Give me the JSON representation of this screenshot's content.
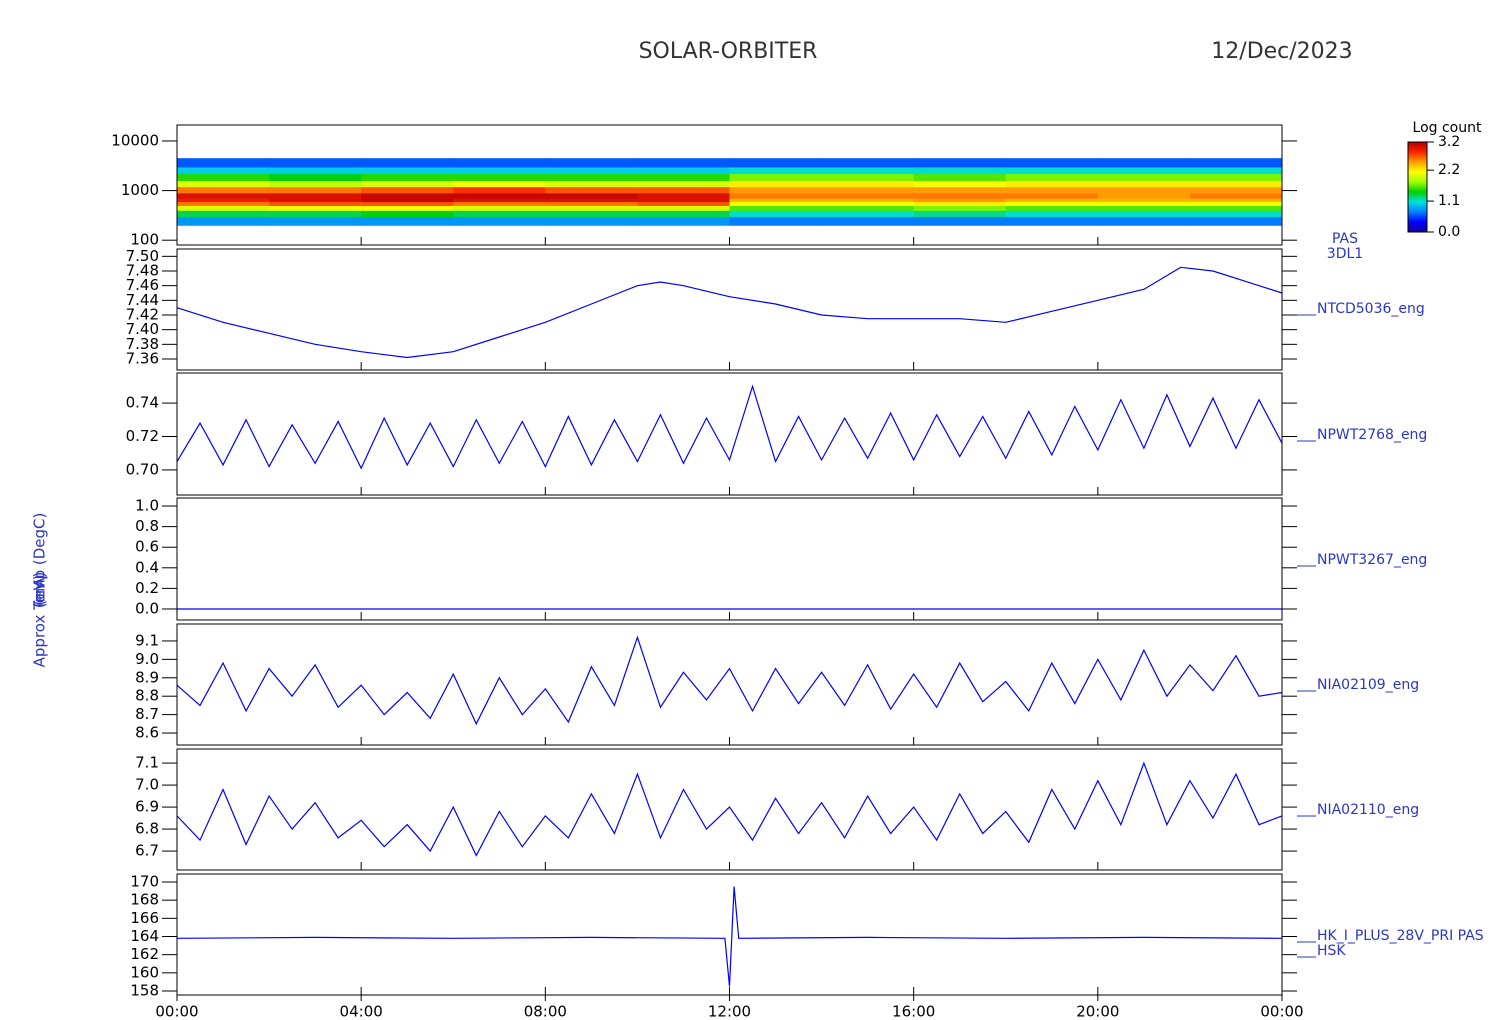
{
  "title": "SOLAR-ORBITER",
  "date": "12/Dec/2023",
  "chart_data": [
    {
      "type": "heatmap",
      "ylabel": "(eV)",
      "log_y": true,
      "ylim": [
        80,
        21000
      ],
      "yticks": [
        100,
        1000,
        10000
      ],
      "x_bins": [
        0,
        2,
        4,
        6,
        8,
        10,
        12,
        14,
        16,
        18,
        20,
        22,
        24
      ],
      "y_bins": [
        200,
        300,
        400,
        500,
        600,
        700,
        900,
        1200,
        1600,
        2200,
        3000,
        4500
      ],
      "z": [
        [
          0.8,
          1.3,
          2.0,
          2.6,
          2.9,
          3.0,
          2.6,
          2.0,
          1.5,
          1.0,
          0.6
        ],
        [
          0.8,
          1.3,
          2.1,
          2.7,
          3.0,
          3.0,
          2.6,
          1.9,
          1.4,
          1.0,
          0.6
        ],
        [
          0.8,
          1.4,
          2.1,
          2.7,
          3.1,
          3.1,
          2.7,
          2.0,
          1.5,
          1.0,
          0.6
        ],
        [
          0.8,
          1.3,
          2.0,
          2.6,
          3.0,
          3.1,
          2.8,
          2.1,
          1.5,
          1.0,
          0.6
        ],
        [
          0.8,
          1.3,
          2.0,
          2.6,
          3.0,
          3.1,
          2.7,
          2.0,
          1.5,
          1.0,
          0.6
        ],
        [
          0.8,
          1.3,
          2.0,
          2.7,
          3.0,
          3.0,
          2.7,
          2.0,
          1.5,
          1.0,
          0.6
        ],
        [
          0.7,
          1.1,
          1.6,
          2.1,
          2.4,
          2.6,
          2.5,
          2.2,
          1.7,
          1.1,
          0.6
        ],
        [
          0.7,
          1.1,
          1.6,
          2.1,
          2.4,
          2.6,
          2.5,
          2.2,
          1.7,
          1.1,
          0.6
        ],
        [
          0.7,
          1.2,
          1.7,
          2.2,
          2.5,
          2.6,
          2.5,
          2.1,
          1.6,
          1.1,
          0.6
        ],
        [
          0.7,
          1.1,
          1.6,
          2.1,
          2.4,
          2.6,
          2.5,
          2.2,
          1.7,
          1.1,
          0.6
        ],
        [
          0.7,
          1.1,
          1.6,
          2.1,
          2.4,
          2.5,
          2.5,
          2.2,
          1.7,
          1.1,
          0.6
        ],
        [
          0.7,
          1.1,
          1.6,
          2.1,
          2.4,
          2.6,
          2.5,
          2.2,
          1.7,
          1.1,
          0.6
        ]
      ],
      "colorbar": {
        "title": "Log count",
        "lim": [
          0,
          3.2
        ],
        "ticks": [
          {
            "value": 0,
            "label": "0.0"
          },
          1.1,
          2.2,
          3.2
        ],
        "colors": [
          "#1a0096",
          "#0000ff",
          "#0080ff",
          "#00e0e0",
          "#00d000",
          "#a0ff00",
          "#ffff00",
          "#ffa000",
          "#ff2000",
          "#b00000"
        ]
      },
      "labels": [
        "PAS",
        "3DL1"
      ]
    },
    {
      "type": "line",
      "ylabel": "Approx Temp (DegC)",
      "color": "#0000ff",
      "ylim": [
        7.345,
        7.51
      ],
      "yticks": [
        7.36,
        7.38,
        {
          "value": 7.4,
          "label": "7.40"
        },
        7.42,
        7.44,
        7.46,
        7.48,
        {
          "value": 7.5,
          "label": "7.50"
        }
      ],
      "x": [
        0,
        1,
        2,
        3,
        4,
        5,
        6,
        7,
        8,
        9,
        10,
        10.5,
        11,
        12,
        13,
        14,
        15,
        16,
        17,
        18,
        19,
        20,
        21,
        21.8,
        22.5,
        23,
        24
      ],
      "values": [
        7.43,
        7.41,
        7.395,
        7.38,
        7.37,
        7.362,
        7.37,
        7.39,
        7.41,
        7.435,
        7.46,
        7.465,
        7.46,
        7.445,
        7.435,
        7.42,
        7.415,
        7.415,
        7.415,
        7.41,
        7.425,
        7.44,
        7.455,
        7.485,
        7.48,
        7.47,
        7.45
      ],
      "labels": [
        "NTCD5036_eng"
      ]
    },
    {
      "type": "line",
      "color": "#0000ff",
      "ylim": [
        0.685,
        0.758
      ],
      "yticks": [
        {
          "value": 0.7,
          "label": "0.70"
        },
        0.72,
        0.74
      ],
      "x": [
        0,
        0.5,
        1,
        1.5,
        2,
        2.5,
        3,
        3.5,
        4,
        4.5,
        5,
        5.5,
        6,
        6.5,
        7,
        7.5,
        8,
        8.5,
        9,
        9.5,
        10,
        10.5,
        11,
        11.5,
        12,
        12.5,
        13,
        13.5,
        14,
        14.5,
        15,
        15.5,
        16,
        16.5,
        17,
        17.5,
        18,
        18.5,
        19,
        19.5,
        20,
        20.5,
        21,
        21.5,
        22,
        22.5,
        23,
        23.5,
        24
      ],
      "values": [
        0.705,
        0.728,
        0.703,
        0.73,
        0.702,
        0.727,
        0.704,
        0.729,
        0.701,
        0.731,
        0.703,
        0.728,
        0.702,
        0.73,
        0.704,
        0.729,
        0.702,
        0.732,
        0.703,
        0.73,
        0.705,
        0.733,
        0.704,
        0.731,
        0.706,
        0.75,
        0.705,
        0.732,
        0.706,
        0.731,
        0.707,
        0.734,
        0.706,
        0.733,
        0.708,
        0.732,
        0.707,
        0.735,
        0.709,
        0.738,
        0.712,
        0.742,
        0.713,
        0.745,
        0.714,
        0.743,
        0.713,
        0.742,
        0.716
      ],
      "labels": [
        "NPWT2768_eng"
      ]
    },
    {
      "type": "line",
      "color": "#0000ff",
      "ylim": [
        -0.107,
        1.078
      ],
      "yticks": [
        {
          "value": 0,
          "label": "0.0"
        },
        0.2,
        0.4,
        0.6,
        0.8,
        {
          "value": 1,
          "label": "1.0"
        }
      ],
      "x": [
        0,
        24
      ],
      "values": [
        0,
        0
      ],
      "labels": [
        "NPWT3267_eng"
      ]
    },
    {
      "type": "line",
      "color": "#0000ff",
      "ylim": [
        8.535,
        9.192
      ],
      "yticks": [
        8.6,
        8.7,
        8.8,
        8.9,
        {
          "value": 9,
          "label": "9.0"
        },
        9.1
      ],
      "x": [
        0,
        0.5,
        1,
        1.5,
        2,
        2.5,
        3,
        3.5,
        4,
        4.5,
        5,
        5.5,
        6,
        6.5,
        7,
        7.5,
        8,
        8.5,
        9,
        9.5,
        10,
        10.5,
        11,
        11.5,
        12,
        12.5,
        13,
        13.5,
        14,
        14.5,
        15,
        15.5,
        16,
        16.5,
        17,
        17.5,
        18,
        18.5,
        19,
        19.5,
        20,
        20.5,
        21,
        21.5,
        22,
        22.5,
        23,
        23.5,
        24
      ],
      "values": [
        8.86,
        8.75,
        8.98,
        8.72,
        8.95,
        8.8,
        8.97,
        8.74,
        8.86,
        8.7,
        8.82,
        8.68,
        8.92,
        8.65,
        8.9,
        8.7,
        8.84,
        8.66,
        8.96,
        8.75,
        9.12,
        8.74,
        8.93,
        8.78,
        8.95,
        8.72,
        8.95,
        8.76,
        8.93,
        8.75,
        8.97,
        8.73,
        8.92,
        8.74,
        8.98,
        8.77,
        8.88,
        8.72,
        8.98,
        8.76,
        9.0,
        8.78,
        9.05,
        8.8,
        8.97,
        8.83,
        9.02,
        8.8,
        8.82
      ],
      "labels": [
        "NIA02109_eng"
      ]
    },
    {
      "type": "line",
      "color": "#0000ff",
      "ylim": [
        6.614,
        7.164
      ],
      "yticks": [
        6.7,
        6.8,
        6.9,
        {
          "value": 7,
          "label": "7.0"
        },
        7.1
      ],
      "x": [
        0,
        0.5,
        1,
        1.5,
        2,
        2.5,
        3,
        3.5,
        4,
        4.5,
        5,
        5.5,
        6,
        6.5,
        7,
        7.5,
        8,
        8.5,
        9,
        9.5,
        10,
        10.5,
        11,
        11.5,
        12,
        12.5,
        13,
        13.5,
        14,
        14.5,
        15,
        15.5,
        16,
        16.5,
        17,
        17.5,
        18,
        18.5,
        19,
        19.5,
        20,
        20.5,
        21,
        21.5,
        22,
        22.5,
        23,
        23.5,
        24
      ],
      "values": [
        6.86,
        6.75,
        6.98,
        6.73,
        6.95,
        6.8,
        6.92,
        6.76,
        6.84,
        6.72,
        6.82,
        6.7,
        6.9,
        6.68,
        6.88,
        6.72,
        6.86,
        6.76,
        6.96,
        6.78,
        7.05,
        6.76,
        6.98,
        6.8,
        6.9,
        6.75,
        6.94,
        6.78,
        6.92,
        6.76,
        6.95,
        6.78,
        6.9,
        6.75,
        6.96,
        6.78,
        6.88,
        6.74,
        6.98,
        6.8,
        7.02,
        6.82,
        7.1,
        6.82,
        7.02,
        6.85,
        7.05,
        6.82,
        6.86
      ],
      "labels": [
        "NIA02110_eng"
      ]
    },
    {
      "type": "line",
      "ylabel": "(mA)",
      "color": "#0000ff",
      "ylim": [
        157.56,
        170.88
      ],
      "yticks": [
        158,
        160,
        162,
        164,
        166,
        168,
        170
      ],
      "x": [
        0,
        3,
        6,
        9,
        11.9,
        12,
        12.1,
        12.2,
        15,
        18,
        21,
        24
      ],
      "values": [
        163.8,
        163.9,
        163.8,
        163.9,
        163.8,
        158.5,
        169.5,
        163.8,
        163.9,
        163.8,
        163.9,
        163.8
      ],
      "labels": [
        "HK_I_PLUS_28V_PRI PAS",
        "HSK"
      ],
      "xlim": [
        0,
        24
      ],
      "xticks": [
        {
          "value": 0,
          "label": "00:00"
        },
        {
          "value": 4,
          "label": "04:00"
        },
        {
          "value": 8,
          "label": "08:00"
        },
        {
          "value": 12,
          "label": "12:00"
        },
        {
          "value": 16,
          "label": "16:00"
        },
        {
          "value": 20,
          "label": "20:00"
        },
        {
          "value": 24,
          "label": "00:00"
        }
      ]
    }
  ]
}
